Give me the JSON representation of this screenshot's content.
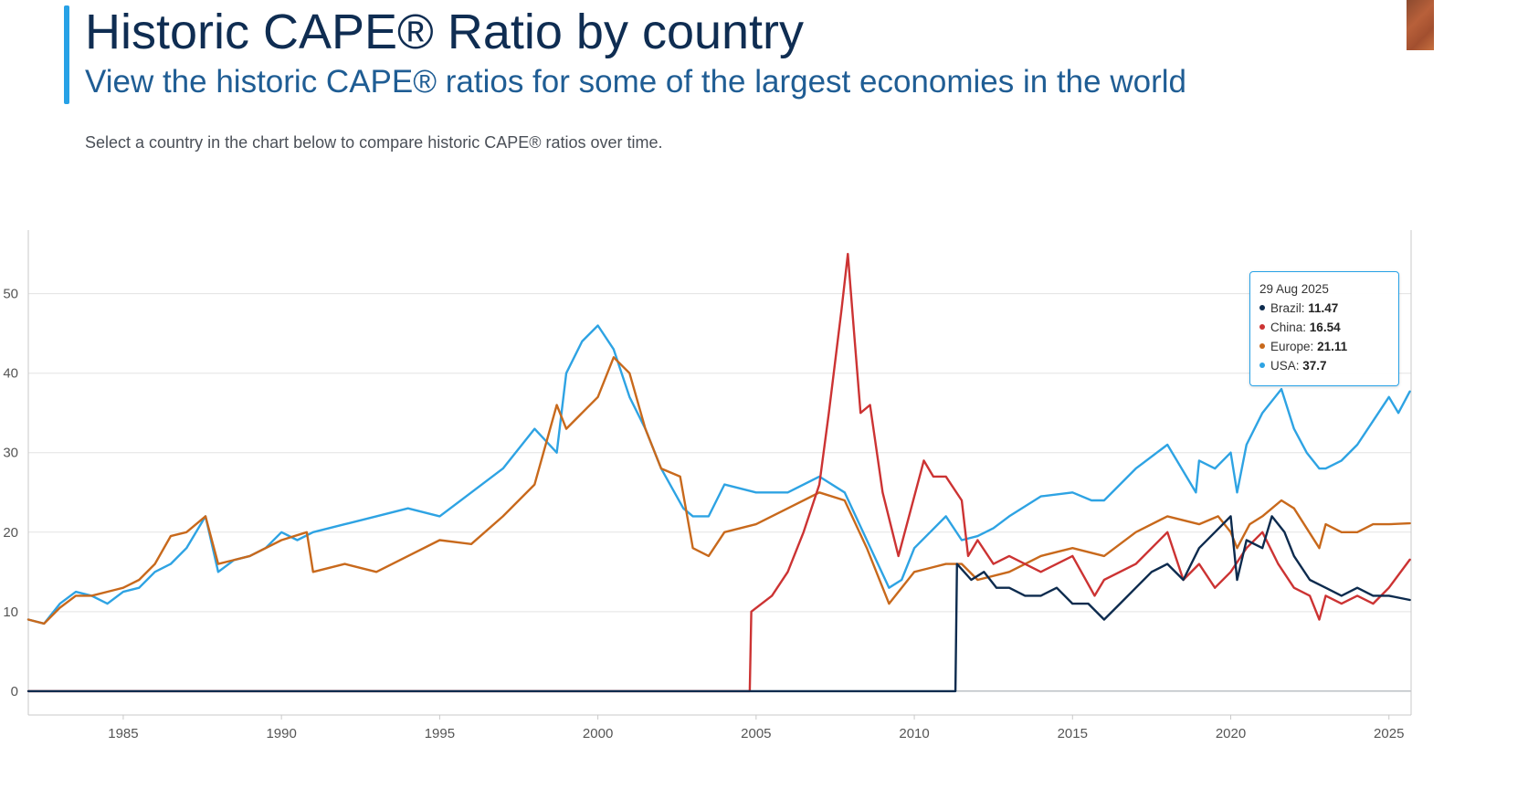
{
  "header": {
    "title": "Historic CAPE® Ratio by country",
    "subtitle": "View the historic CAPE® ratios for some of the largest economies in the world",
    "intro": "Select a country in the chart below to compare historic CAPE® ratios over time."
  },
  "tooltip": {
    "date": "29 Aug 2025",
    "rows": [
      {
        "label": "Brazil:",
        "value": "11.47",
        "color": "#0d2b4e"
      },
      {
        "label": "China:",
        "value": "16.54",
        "color": "#cc3333"
      },
      {
        "label": "Europe:",
        "value": "21.11",
        "color": "#c8691c"
      },
      {
        "label": "USA:",
        "value": "37.7",
        "color": "#2ea3e3"
      }
    ]
  },
  "chart_data": {
    "type": "line",
    "xlim": [
      1982,
      2025.7
    ],
    "ylim": [
      -3,
      58
    ],
    "x_ticks": [
      1985,
      1990,
      1995,
      2000,
      2005,
      2010,
      2015,
      2020,
      2025
    ],
    "y_ticks": [
      0,
      10,
      20,
      30,
      40,
      50
    ],
    "grid": true,
    "series": [
      {
        "name": "USA",
        "color": "#2ea3e3",
        "x": [
          1982,
          1982.5,
          1983,
          1983.5,
          1984,
          1984.5,
          1985,
          1985.5,
          1986,
          1986.5,
          1987,
          1987.6,
          1988,
          1988.5,
          1989,
          1989.5,
          1990,
          1990.5,
          1991,
          1992,
          1993,
          1994,
          1995,
          1996,
          1997,
          1998,
          1998.7,
          1999,
          1999.5,
          2000,
          2000.5,
          2001,
          2001.5,
          2002,
          2002.7,
          2003,
          2003.5,
          2004,
          2005,
          2006,
          2007,
          2007.8,
          2008.5,
          2009.2,
          2009.6,
          2010,
          2010.5,
          2011,
          2011.5,
          2012,
          2012.5,
          2013,
          2014,
          2015,
          2015.6,
          2016,
          2017,
          2018,
          2018.9,
          2019,
          2019.5,
          2020,
          2020.2,
          2020.5,
          2021,
          2021.6,
          2022,
          2022.4,
          2022.8,
          2023,
          2023.5,
          2024,
          2024.5,
          2025,
          2025.3,
          2025.66
        ],
        "y": [
          9,
          8.5,
          11,
          12.5,
          12,
          11,
          12.5,
          13,
          15,
          16,
          18,
          22,
          15,
          16.5,
          17,
          18,
          20,
          19,
          20,
          21,
          22,
          23,
          22,
          25,
          28,
          33,
          30,
          40,
          44,
          46,
          43,
          37,
          33,
          28,
          23,
          22,
          22,
          26,
          25,
          25,
          27,
          25,
          19,
          13,
          14,
          18,
          20,
          22,
          19,
          19.5,
          20.5,
          22,
          24.5,
          25,
          24,
          24,
          28,
          31,
          25,
          29,
          28,
          30,
          25,
          31,
          35,
          38,
          33,
          30,
          28,
          28,
          29,
          31,
          34,
          37,
          35,
          37.7
        ]
      },
      {
        "name": "Europe",
        "color": "#c8691c",
        "x": [
          1982,
          1982.5,
          1983,
          1983.5,
          1984,
          1985,
          1985.5,
          1986,
          1986.5,
          1987,
          1987.6,
          1988,
          1989,
          1990,
          1990.8,
          1991,
          1992,
          1993,
          1994,
          1995,
          1996,
          1997,
          1998,
          1998.7,
          1999,
          1999.5,
          2000,
          2000.5,
          2001,
          2001.5,
          2002,
          2002.6,
          2003,
          2003.5,
          2004,
          2005,
          2006,
          2007,
          2007.8,
          2008.5,
          2009.2,
          2009.6,
          2010,
          2011,
          2011.5,
          2012,
          2013,
          2014,
          2015,
          2016,
          2017,
          2018,
          2019,
          2019.6,
          2020,
          2020.2,
          2020.6,
          2021,
          2021.6,
          2022,
          2022.8,
          2023,
          2023.5,
          2024,
          2024.5,
          2025,
          2025.66
        ],
        "y": [
          9,
          8.5,
          10.5,
          12,
          12,
          13,
          14,
          16,
          19.5,
          20,
          22,
          16,
          17,
          19,
          20,
          15,
          16,
          15,
          17,
          19,
          18.5,
          22,
          26,
          36,
          33,
          35,
          37,
          42,
          40,
          33,
          28,
          27,
          18,
          17,
          20,
          21,
          23,
          25,
          24,
          18,
          11,
          13,
          15,
          16,
          16,
          14,
          15,
          17,
          18,
          17,
          20,
          22,
          21,
          22,
          20,
          18,
          21,
          22,
          24,
          23,
          18,
          21,
          20,
          20,
          21,
          21,
          21.11
        ]
      },
      {
        "name": "China",
        "color": "#cc3333",
        "x": [
          1982,
          2004.8,
          2004.85,
          2005.5,
          2006,
          2006.5,
          2007,
          2007.3,
          2007.7,
          2007.9,
          2008.1,
          2008.3,
          2008.6,
          2009,
          2009.5,
          2009.9,
          2010.3,
          2010.6,
          2011,
          2011.5,
          2011.7,
          2012,
          2012.5,
          2013,
          2014,
          2015,
          2015.7,
          2016,
          2017,
          2018,
          2018.5,
          2019,
          2019.5,
          2020,
          2020.5,
          2021,
          2021.5,
          2022,
          2022.5,
          2022.8,
          2023,
          2023.5,
          2024,
          2024.5,
          2025,
          2025.66
        ],
        "y": [
          0,
          0,
          10,
          12,
          15,
          20,
          26,
          35,
          48,
          55,
          45,
          35,
          36,
          25,
          17,
          23,
          29,
          27,
          27,
          24,
          17,
          19,
          16,
          17,
          15,
          17,
          12,
          14,
          16,
          20,
          14,
          16,
          13,
          15,
          18,
          20,
          16,
          13,
          12,
          9,
          12,
          11,
          12,
          11,
          13,
          16.54
        ]
      },
      {
        "name": "Brazil",
        "color": "#0d2b4e",
        "x": [
          1982,
          2011.3,
          2011.35,
          2011.8,
          2012.2,
          2012.6,
          2013,
          2013.5,
          2014,
          2014.5,
          2015,
          2015.5,
          2016,
          2016.5,
          2017,
          2017.5,
          2018,
          2018.5,
          2019,
          2019.5,
          2020,
          2020.2,
          2020.5,
          2021,
          2021.3,
          2021.7,
          2022,
          2022.5,
          2023,
          2023.5,
          2024,
          2024.5,
          2025,
          2025.66
        ],
        "y": [
          0,
          0,
          16,
          14,
          15,
          13,
          13,
          12,
          12,
          13,
          11,
          11,
          9,
          11,
          13,
          15,
          16,
          14,
          18,
          20,
          22,
          14,
          19,
          18,
          22,
          20,
          17,
          14,
          13,
          12,
          13,
          12,
          12,
          11.47
        ]
      }
    ]
  }
}
